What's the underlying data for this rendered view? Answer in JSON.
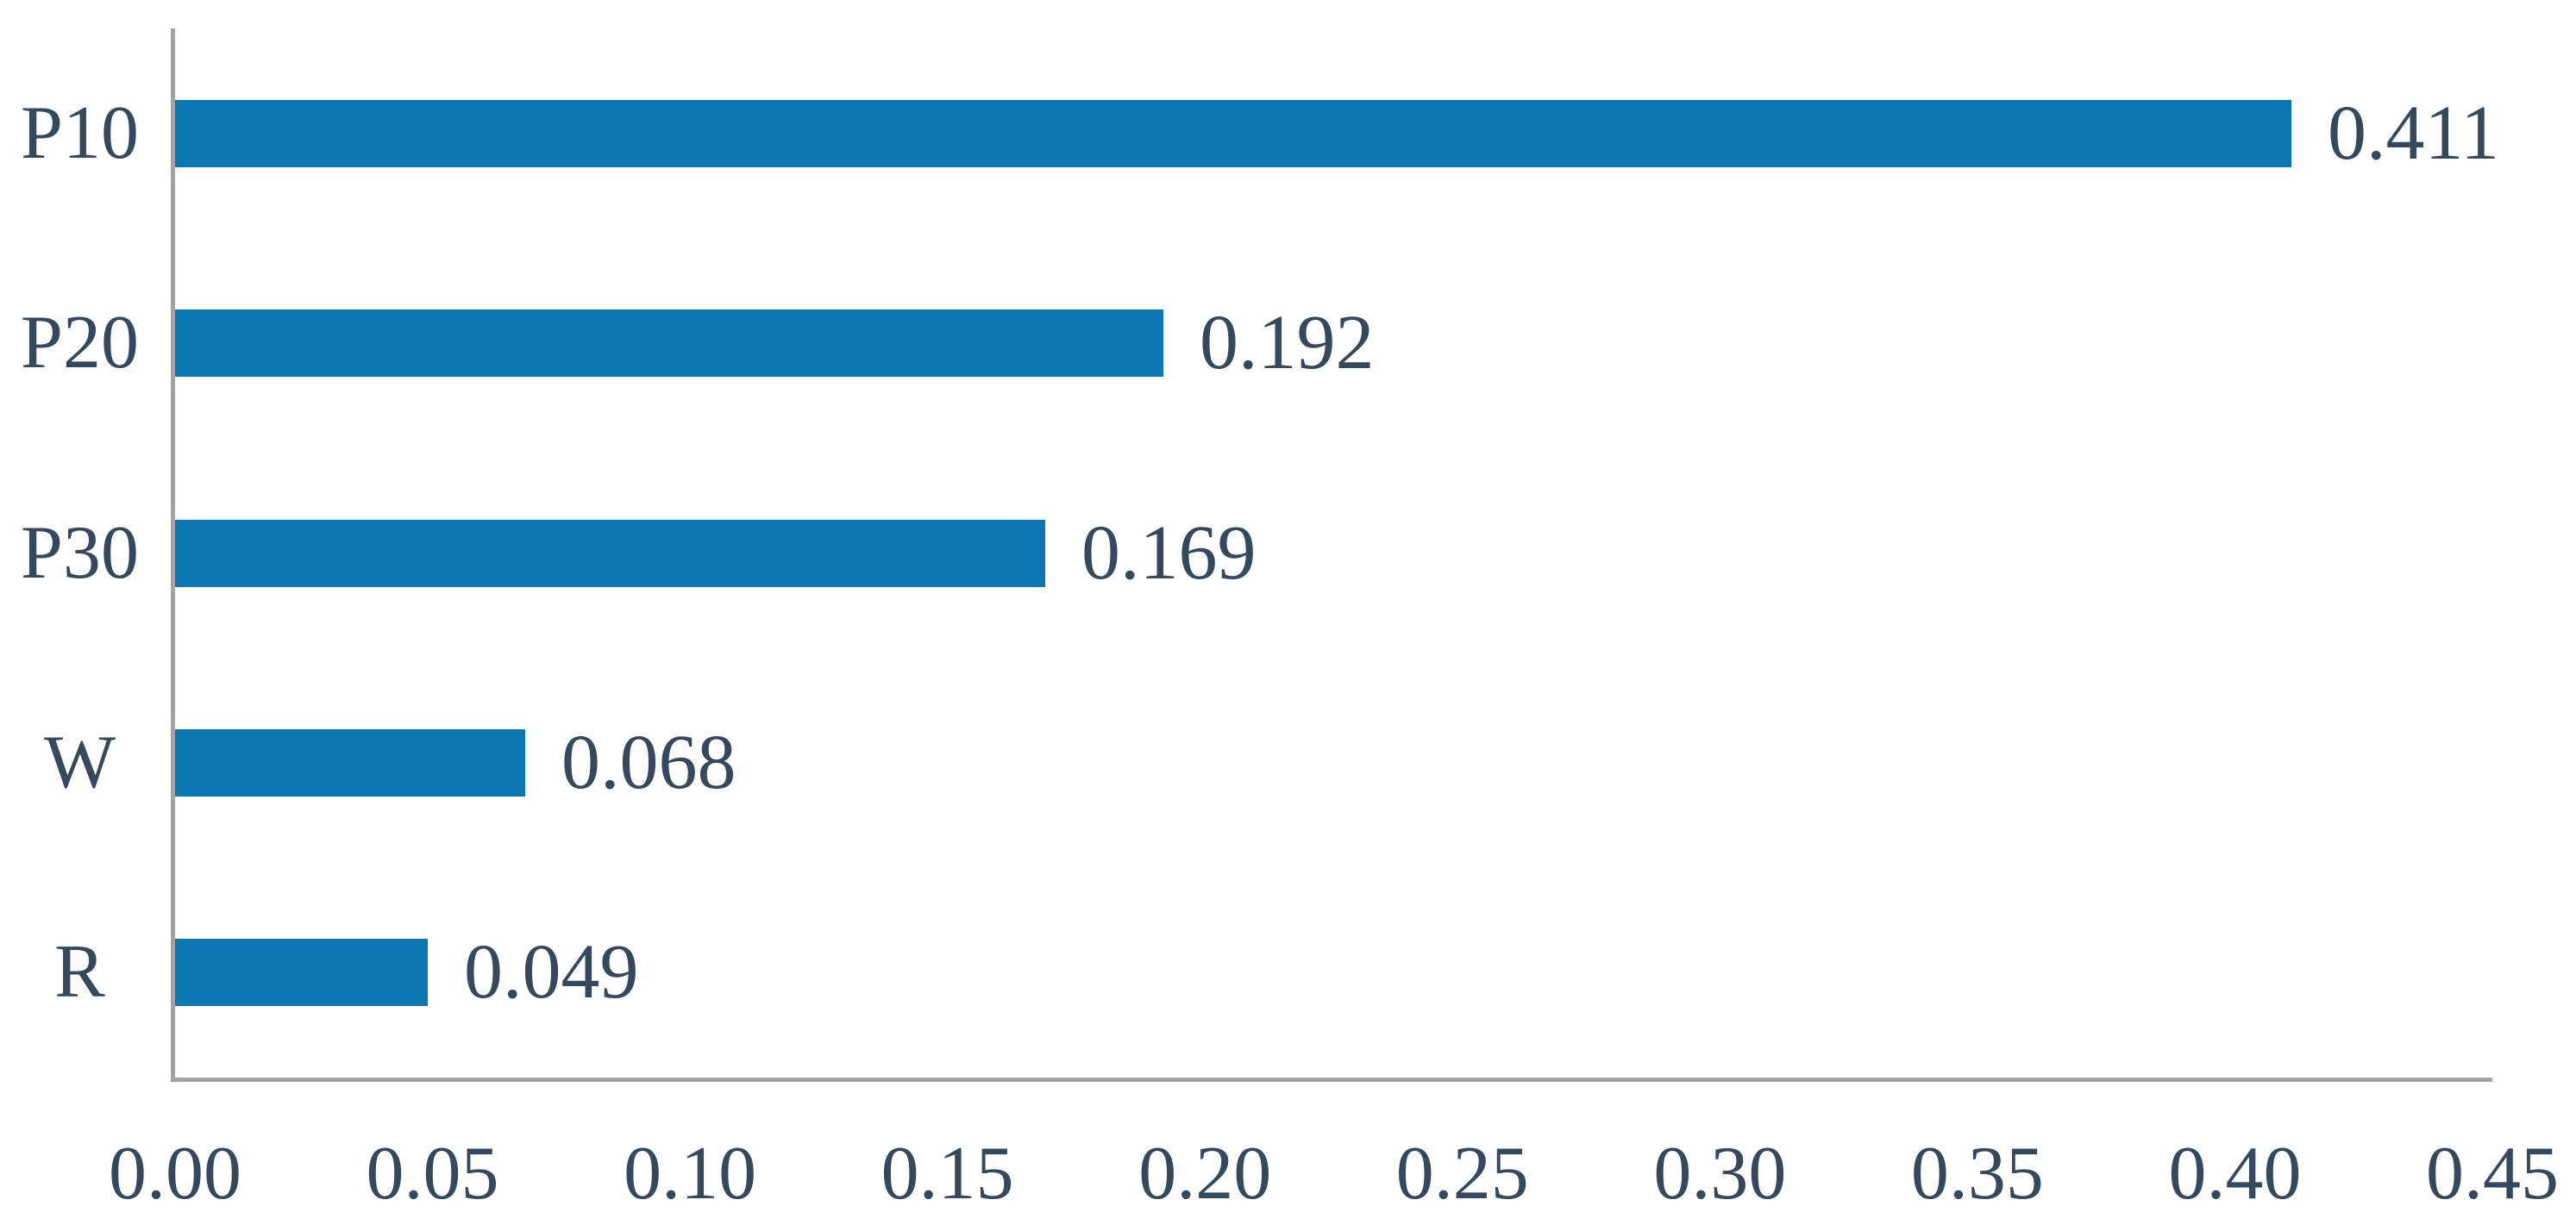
{
  "chart_data": {
    "type": "bar",
    "orientation": "horizontal",
    "title": "",
    "subtitle": "",
    "xlabel": "",
    "ylabel": "",
    "categories": [
      "P10",
      "P20",
      "P30",
      "W",
      "R"
    ],
    "values": [
      0.411,
      0.192,
      0.169,
      0.068,
      0.049
    ],
    "value_labels": [
      "0.411",
      "0.192",
      "0.169",
      "0.068",
      "0.049"
    ],
    "x_ticks": [
      {
        "label": "0.00",
        "value": 0.0
      },
      {
        "label": "0.05",
        "value": 0.05
      },
      {
        "label": "0.10",
        "value": 0.1
      },
      {
        "label": "0.15",
        "value": 0.15
      },
      {
        "label": "0.20",
        "value": 0.2
      },
      {
        "label": "0.25",
        "value": 0.25
      },
      {
        "label": "0.30",
        "value": 0.3
      },
      {
        "label": "0.35",
        "value": 0.35
      },
      {
        "label": "0.40",
        "value": 0.4
      },
      {
        "label": "0.45",
        "value": 0.45
      }
    ],
    "xlim": [
      0,
      0.45
    ],
    "grid": false,
    "legend": false,
    "data_labels_shown": true,
    "colors": {
      "bar": "#0b78b3",
      "text": "#34495e",
      "axis": "#a3a3a3",
      "background": "#ffffff"
    }
  }
}
